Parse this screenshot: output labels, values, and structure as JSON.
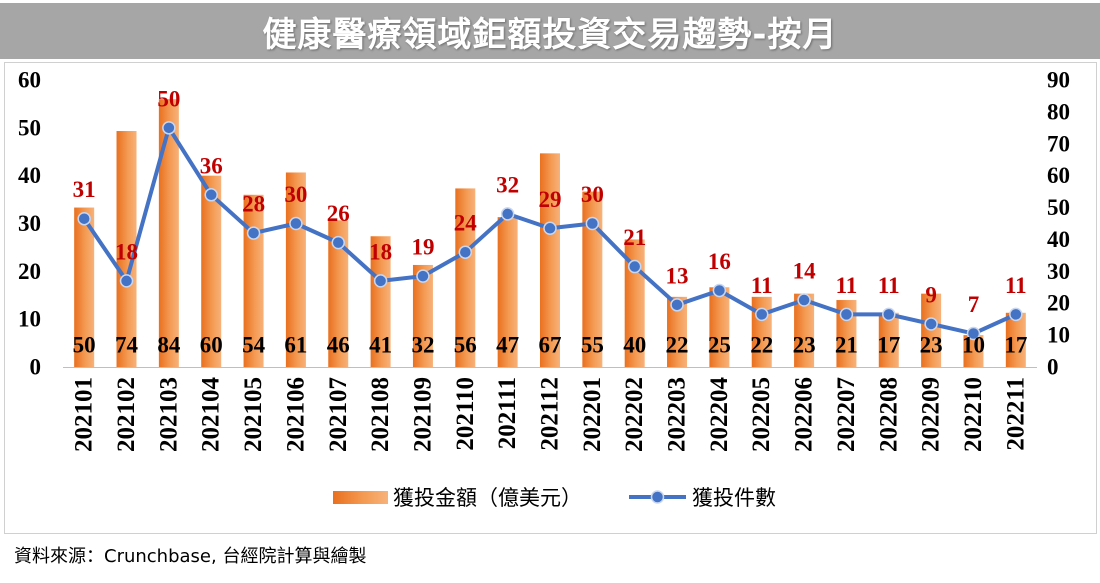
{
  "chart_data": {
    "type": "bar",
    "title": "健康醫療領域鉅額投資交易趨勢-按月",
    "categories": [
      "202101",
      "202102",
      "202103",
      "202104",
      "202105",
      "202106",
      "202107",
      "202108",
      "202109",
      "202110",
      "202111",
      "202112",
      "202201",
      "202202",
      "202203",
      "202204",
      "202205",
      "202206",
      "202207",
      "202208",
      "202209",
      "202210",
      "202211"
    ],
    "series": [
      {
        "name": "獲投金額（億美元）",
        "type": "bar",
        "axis": "right",
        "color": "#ed7d31",
        "label_color": "#000000",
        "values": [
          50,
          74,
          84,
          60,
          54,
          61,
          46,
          41,
          32,
          56,
          47,
          67,
          55,
          40,
          22,
          25,
          22,
          23,
          21,
          17,
          23,
          10,
          17
        ]
      },
      {
        "name": "獲投件數",
        "type": "line",
        "axis": "left",
        "color": "#4472c4",
        "label_color": "#c00000",
        "values": [
          31,
          18,
          50,
          36,
          28,
          30,
          26,
          18,
          19,
          24,
          32,
          29,
          30,
          21,
          13,
          16,
          11,
          14,
          11,
          11,
          9,
          7,
          11
        ]
      }
    ],
    "y_left": {
      "lim": [
        0,
        60
      ],
      "ticks": [
        0,
        10,
        20,
        30,
        40,
        50,
        60
      ]
    },
    "y_right": {
      "lim": [
        0,
        90
      ],
      "ticks": [
        0,
        10,
        20,
        30,
        40,
        50,
        60,
        70,
        80,
        90
      ]
    },
    "grid": false,
    "legend": "bottom",
    "data_labels": true
  },
  "source": "資料來源：Crunchbase, 台經院計算與繪製"
}
